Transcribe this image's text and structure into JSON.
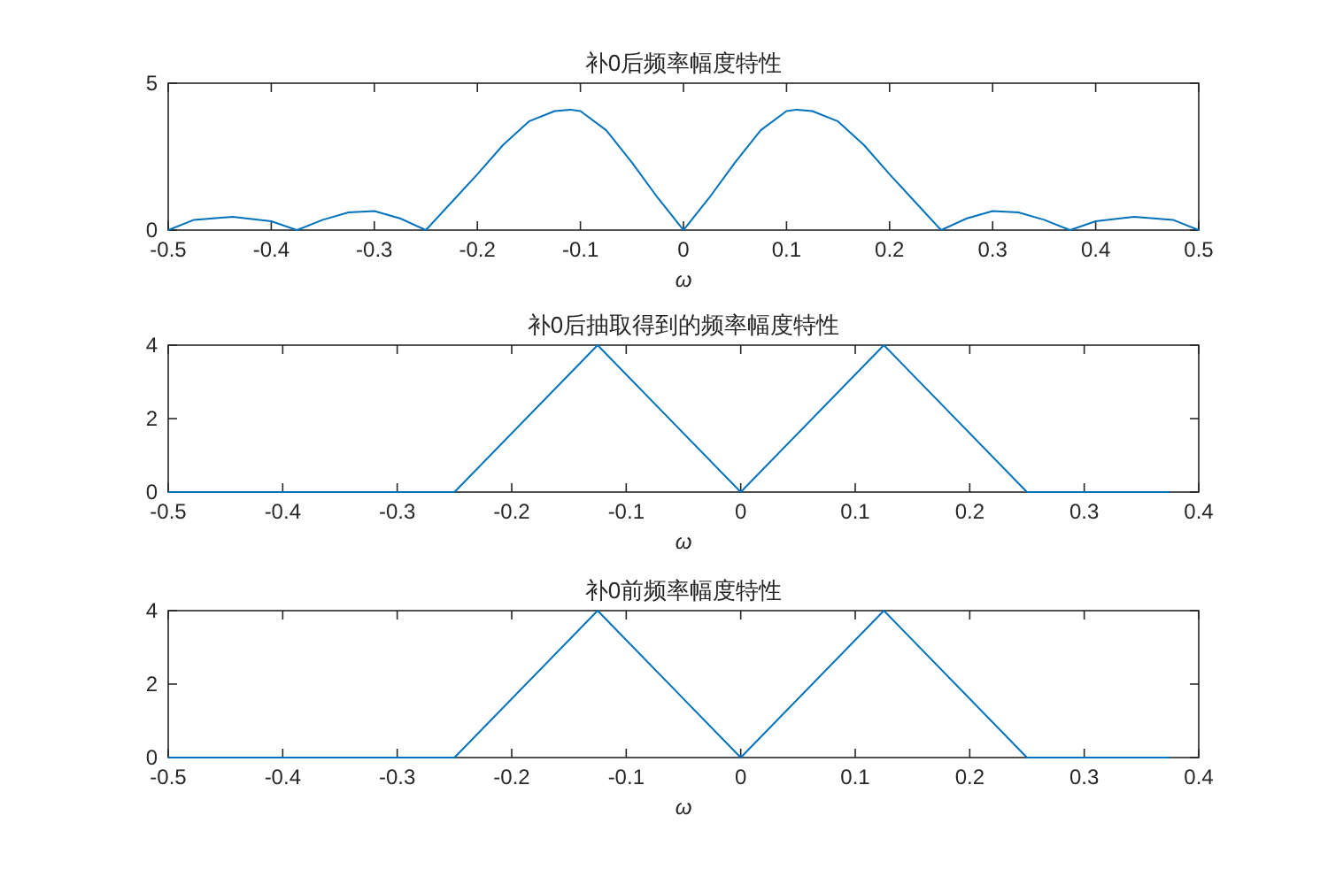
{
  "chart_data": [
    {
      "type": "line",
      "title": "补0后频率幅度特性",
      "xlabel": "ω",
      "color": "#0072bd",
      "x": [
        -0.5,
        -0.475,
        -0.4375,
        -0.4,
        -0.375,
        -0.35,
        -0.325,
        -0.3,
        -0.275,
        -0.25,
        -0.225,
        -0.2,
        -0.175,
        -0.15,
        -0.125,
        -0.11,
        -0.1,
        -0.075,
        -0.05,
        -0.025,
        0,
        0.025,
        0.05,
        0.075,
        0.1,
        0.11,
        0.125,
        0.15,
        0.175,
        0.2,
        0.225,
        0.25,
        0.275,
        0.3,
        0.325,
        0.35,
        0.375,
        0.4,
        0.4375,
        0.475,
        0.5
      ],
      "values": [
        0,
        0.35,
        0.45,
        0.3,
        0,
        0.35,
        0.6,
        0.65,
        0.4,
        0,
        0.95,
        1.9,
        2.9,
        3.7,
        4.05,
        4.1,
        4.05,
        3.4,
        2.3,
        1.1,
        0,
        1.1,
        2.3,
        3.4,
        4.05,
        4.1,
        4.05,
        3.7,
        2.9,
        1.9,
        0.95,
        0,
        0.4,
        0.65,
        0.6,
        0.35,
        0,
        0.3,
        0.45,
        0.35,
        0
      ],
      "xlim": [
        -0.5,
        0.5
      ],
      "ylim": [
        0,
        5
      ],
      "xticks": [
        -0.5,
        -0.4,
        -0.3,
        -0.2,
        -0.1,
        0,
        0.1,
        0.2,
        0.3,
        0.4,
        0.5
      ],
      "yticks": [
        0,
        5
      ]
    },
    {
      "type": "line",
      "title": "补0后抽取得到的频率幅度特性",
      "xlabel": "ω",
      "color": "#0072bd",
      "x": [
        -0.5,
        -0.375,
        -0.25,
        -0.125,
        0,
        0.125,
        0.25,
        0.375
      ],
      "values": [
        0,
        0,
        0,
        4,
        0,
        4,
        0,
        0
      ],
      "xlim": [
        -0.5,
        0.4
      ],
      "ylim": [
        0,
        4
      ],
      "xticks": [
        -0.5,
        -0.4,
        -0.3,
        -0.2,
        -0.1,
        0,
        0.1,
        0.2,
        0.3,
        0.4
      ],
      "yticks": [
        0,
        2,
        4
      ]
    },
    {
      "type": "line",
      "title": "补0前频率幅度特性",
      "xlabel": "ω",
      "color": "#0072bd",
      "x": [
        -0.5,
        -0.375,
        -0.25,
        -0.125,
        0,
        0.125,
        0.25,
        0.375
      ],
      "values": [
        0,
        0,
        0,
        4,
        0,
        4,
        0,
        0
      ],
      "xlim": [
        -0.5,
        0.4
      ],
      "ylim": [
        0,
        4
      ],
      "xticks": [
        -0.5,
        -0.4,
        -0.3,
        -0.2,
        -0.1,
        0,
        0.1,
        0.2,
        0.3,
        0.4
      ],
      "yticks": [
        0,
        2,
        4
      ]
    }
  ]
}
